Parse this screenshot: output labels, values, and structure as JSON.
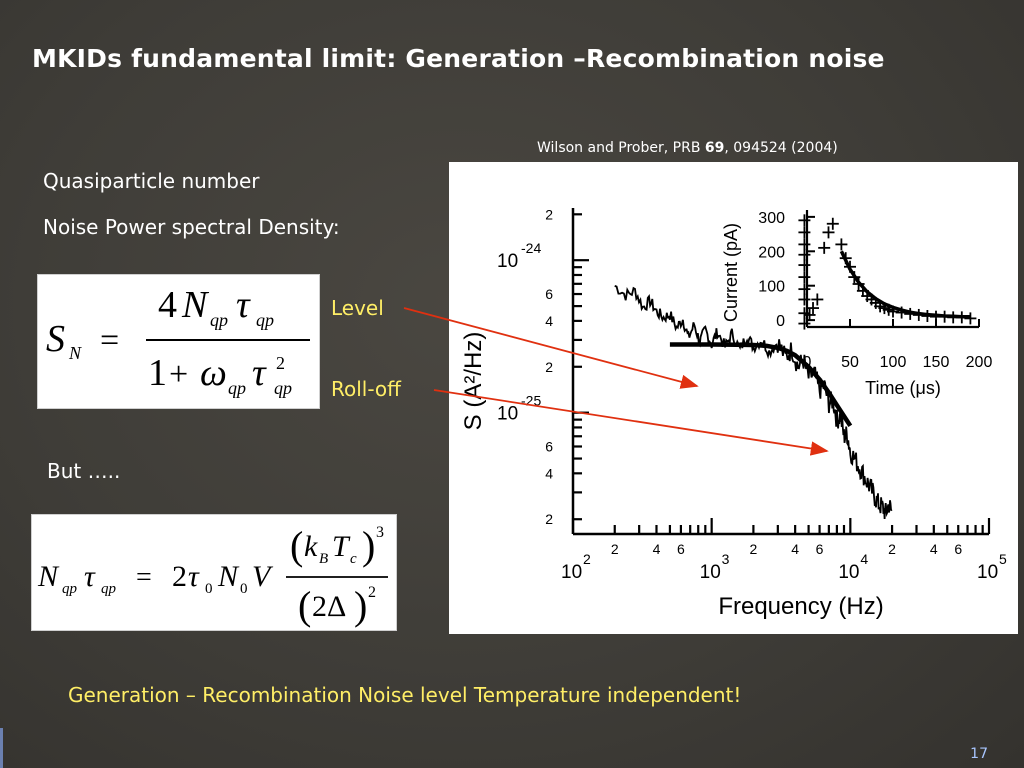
{
  "slide": {
    "title": "MKIDs fundamental limit: Generation –Recombination noise",
    "citation_pre": "Wilson and Prober, PRB ",
    "citation_volume": "69",
    "citation_post": ", 094524 (2004)",
    "line_quasiparticle": "Quasiparticle number",
    "line_noise_psd": "Noise Power spectral Density:",
    "label_level": "Level",
    "label_rolloff": "Roll-off",
    "line_but": "But …..",
    "conclusion": "Generation – Recombination Noise level Temperature independent!",
    "page_number": "17",
    "colors": {
      "accent_yellow": "#ffee66",
      "arrow_red": "#e03010",
      "background": "#3f3d38"
    }
  },
  "chart_data": [
    {
      "type": "line",
      "xscale": "log",
      "yscale": "log",
      "xlabel": "Frequency (Hz)",
      "ylabel": "S (A²/Hz)",
      "x_tick_labels": [
        "10²",
        "2",
        "4",
        "6",
        "10³",
        "2",
        "4",
        "6",
        "10⁴",
        "2",
        "4",
        "6",
        "10⁵"
      ],
      "y_tick_labels": [
        "2",
        "10⁻²⁴",
        "6",
        "4",
        "2",
        "10⁻²⁵",
        "6",
        "4",
        "2"
      ],
      "xlim": [
        100,
        100000
      ],
      "ylim": [
        1.6e-26,
        2.2e-24
      ],
      "series": [
        {
          "style": "noisy-measured",
          "x": [
            200,
            240,
            280,
            320,
            360,
            400,
            450,
            500,
            560,
            620,
            680,
            750,
            820,
            900,
            1000,
            1100,
            1250,
            1400,
            1600,
            1800,
            2000,
            2300,
            2600,
            3000,
            3400,
            3800,
            4200,
            4600,
            5000,
            5500,
            6000,
            6500,
            7000,
            7500,
            8000,
            8500,
            9000,
            9500,
            10000,
            11000,
            12000,
            13000,
            14000,
            15000,
            16000,
            17000,
            18000,
            19000,
            20000
          ],
          "y": [
            6.8e-25,
            5.9e-25,
            6.3e-25,
            4.9e-25,
            5.4e-25,
            4.6e-25,
            4.2e-25,
            4.4e-25,
            3.6e-25,
            4.1e-25,
            3.1e-25,
            3.8e-25,
            2.9e-25,
            3.5e-25,
            2.8e-25,
            3.4e-25,
            2.7e-25,
            3.3e-25,
            2.6e-25,
            3.2e-25,
            2.7e-25,
            3e-25,
            2.5e-25,
            2.9e-25,
            2.3e-25,
            2.6e-25,
            2e-25,
            2.2e-25,
            1.7e-25,
            1.8e-25,
            1.4e-25,
            1.5e-25,
            1.15e-25,
            1.2e-25,
            9e-26,
            9.5e-26,
            7e-26,
            7.2e-26,
            5.6e-26,
            4.8e-26,
            4.2e-26,
            3.6e-26,
            3.2e-26,
            2.8e-26,
            2.5e-26,
            2.4e-26,
            2.2e-26,
            2.5e-26,
            2.2e-26
          ]
        },
        {
          "style": "fit",
          "x": [
            500,
            700,
            1000,
            1500,
            2000,
            2500,
            3000,
            3500,
            4000,
            5000,
            6000,
            7000,
            8000,
            9000,
            10000
          ],
          "y": [
            2.8e-25,
            2.8e-25,
            2.8e-25,
            2.79e-25,
            2.78e-25,
            2.74e-25,
            2.66e-25,
            2.54e-25,
            2.38e-25,
            2e-25,
            1.65e-25,
            1.35e-25,
            1.12e-25,
            9.5e-26,
            8.2e-26
          ]
        }
      ]
    },
    {
      "type": "scatter",
      "xlabel": "Time (μs)",
      "ylabel": "Current (pA)",
      "xlim": [
        0,
        200
      ],
      "ylim": [
        -20,
        320
      ],
      "x_ticks": [
        0,
        50,
        100,
        150,
        200
      ],
      "y_ticks": [
        0,
        100,
        200,
        300
      ],
      "series": [
        {
          "style": "plus-markers",
          "x": [
            -3,
            -3,
            -3,
            -3,
            -3,
            -3,
            -3,
            -3,
            -3,
            -3,
            3,
            7,
            12,
            20,
            25,
            30,
            40,
            45,
            50,
            55,
            60,
            65,
            70,
            75,
            80,
            85,
            90,
            95,
            100,
            110,
            120,
            130,
            140,
            150,
            160,
            170,
            180,
            190
          ],
          "y": [
            290,
            255,
            220,
            190,
            160,
            125,
            90,
            60,
            20,
            -10,
            15,
            35,
            60,
            210,
            255,
            280,
            220,
            180,
            155,
            125,
            105,
            85,
            70,
            60,
            50,
            40,
            35,
            30,
            25,
            22,
            18,
            15,
            12,
            10,
            10,
            8,
            8,
            5
          ]
        },
        {
          "style": "fit",
          "x": [
            40,
            50,
            60,
            70,
            80,
            90,
            100,
            110,
            120,
            130,
            140,
            150,
            160,
            170,
            180,
            190
          ],
          "y": [
            200,
            148,
            110,
            82,
            62,
            47,
            37,
            29,
            23,
            19,
            16,
            14,
            12,
            11,
            10,
            10
          ]
        }
      ]
    }
  ]
}
